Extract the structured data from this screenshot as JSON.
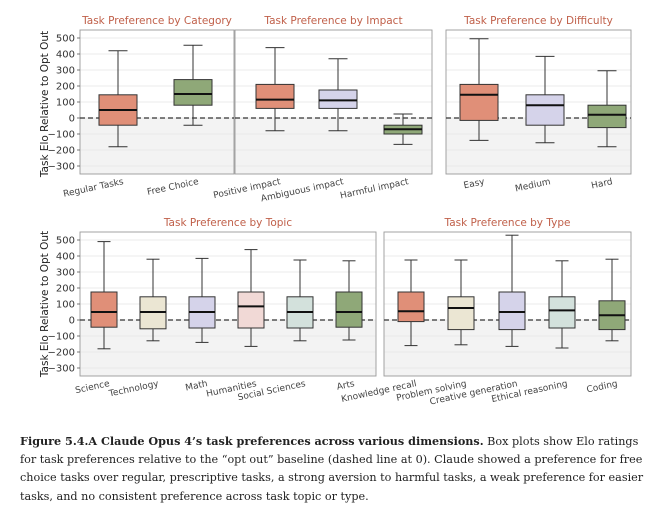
{
  "y_axis_label": "Task Elo Relative to Opt Out",
  "colors": {
    "panel_title": "#c0604a",
    "red": "#e08f78",
    "lavender": "#d5d3ea",
    "green": "#8fa878",
    "cream": "#ebe6d3",
    "pink": "#f1d9d6",
    "sage": "#d3e1dc",
    "stroke": "#333333",
    "grid": "#e4e4e4",
    "negative_shade": "#f3f3f3"
  },
  "chart_data": [
    {
      "type": "box",
      "title": "Task Preference by Category",
      "ylim": [
        -350,
        550
      ],
      "yticks": [
        -300,
        -200,
        -100,
        0,
        100,
        200,
        300,
        400,
        500
      ],
      "baseline": 0,
      "categories": [
        "Regular Tasks",
        "Free Choice"
      ],
      "fill_colors": [
        "red",
        "green"
      ],
      "boxes": [
        {
          "whisker_low": -180,
          "q1": -45,
          "median": 50,
          "q3": 145,
          "whisker_high": 420
        },
        {
          "whisker_low": -45,
          "q1": 80,
          "median": 150,
          "q3": 240,
          "whisker_high": 455
        }
      ]
    },
    {
      "type": "box",
      "title": "Task Preference by Impact",
      "ylim": [
        -350,
        550
      ],
      "yticks": [
        -300,
        -200,
        -100,
        0,
        100,
        200,
        300,
        400,
        500
      ],
      "baseline": 0,
      "categories": [
        "Positive impact",
        "Ambiguous impact",
        "Harmful impact"
      ],
      "fill_colors": [
        "red",
        "lavender",
        "green"
      ],
      "boxes": [
        {
          "whisker_low": -80,
          "q1": 60,
          "median": 115,
          "q3": 210,
          "whisker_high": 440
        },
        {
          "whisker_low": -80,
          "q1": 60,
          "median": 110,
          "q3": 175,
          "whisker_high": 370
        },
        {
          "whisker_low": -165,
          "q1": -100,
          "median": -70,
          "q3": -45,
          "whisker_high": 25
        }
      ]
    },
    {
      "type": "box",
      "title": "Task Preference by Difficulty",
      "ylim": [
        -350,
        550
      ],
      "yticks": [
        -300,
        -200,
        -100,
        0,
        100,
        200,
        300,
        400,
        500
      ],
      "baseline": 0,
      "categories": [
        "Easy",
        "Medium",
        "Hard"
      ],
      "fill_colors": [
        "red",
        "lavender",
        "green"
      ],
      "boxes": [
        {
          "whisker_low": -140,
          "q1": -15,
          "median": 145,
          "q3": 210,
          "whisker_high": 495
        },
        {
          "whisker_low": -155,
          "q1": -45,
          "median": 80,
          "q3": 145,
          "whisker_high": 385
        },
        {
          "whisker_low": -180,
          "q1": -60,
          "median": 20,
          "q3": 80,
          "whisker_high": 295
        }
      ]
    },
    {
      "type": "box",
      "title": "Task Preference by Topic",
      "ylim": [
        -350,
        550
      ],
      "yticks": [
        -300,
        -200,
        -100,
        0,
        100,
        200,
        300,
        400,
        500
      ],
      "baseline": 0,
      "categories": [
        "Science",
        "Technology",
        "Math",
        "Humanities",
        "Social Sciences",
        "Arts"
      ],
      "fill_colors": [
        "red",
        "cream",
        "lavender",
        "pink",
        "sage",
        "green"
      ],
      "boxes": [
        {
          "whisker_low": -180,
          "q1": -45,
          "median": 50,
          "q3": 175,
          "whisker_high": 490
        },
        {
          "whisker_low": -130,
          "q1": -55,
          "median": 50,
          "q3": 145,
          "whisker_high": 380
        },
        {
          "whisker_low": -140,
          "q1": -50,
          "median": 50,
          "q3": 145,
          "whisker_high": 385
        },
        {
          "whisker_low": -165,
          "q1": -50,
          "median": 85,
          "q3": 175,
          "whisker_high": 440
        },
        {
          "whisker_low": -130,
          "q1": -50,
          "median": 50,
          "q3": 145,
          "whisker_high": 375
        },
        {
          "whisker_low": -125,
          "q1": -45,
          "median": 50,
          "q3": 175,
          "whisker_high": 370
        }
      ]
    },
    {
      "type": "box",
      "title": "Task Preference by Type",
      "ylim": [
        -350,
        550
      ],
      "yticks": [
        -300,
        -200,
        -100,
        0,
        100,
        200,
        300,
        400,
        500
      ],
      "baseline": 0,
      "categories": [
        "Knowledge recall",
        "Problem solving",
        "Creative generation",
        "Ethical reasoning",
        "Coding"
      ],
      "fill_colors": [
        "red",
        "cream",
        "lavender",
        "sage",
        "green"
      ],
      "boxes": [
        {
          "whisker_low": -160,
          "q1": -10,
          "median": 55,
          "q3": 175,
          "whisker_high": 375
        },
        {
          "whisker_low": -155,
          "q1": -60,
          "median": 75,
          "q3": 145,
          "whisker_high": 375
        },
        {
          "whisker_low": -165,
          "q1": -60,
          "median": 50,
          "q3": 175,
          "whisker_high": 530
        },
        {
          "whisker_low": -175,
          "q1": -50,
          "median": 60,
          "q3": 145,
          "whisker_high": 370
        },
        {
          "whisker_low": -130,
          "q1": -60,
          "median": 30,
          "q3": 120,
          "whisker_high": 380
        }
      ]
    }
  ],
  "caption": {
    "bold": "Figure 5.4.A Claude Opus 4’s task preferences across various dimensions.",
    "text": " Box plots show Elo ratings for task preferences relative to the “opt out” baseline (dashed line at 0). Claude showed a preference for free choice tasks over regular, prescriptive tasks, a strong aversion to harmful tasks, a weak preference for easier tasks, and no consistent preference across task topic or type."
  }
}
